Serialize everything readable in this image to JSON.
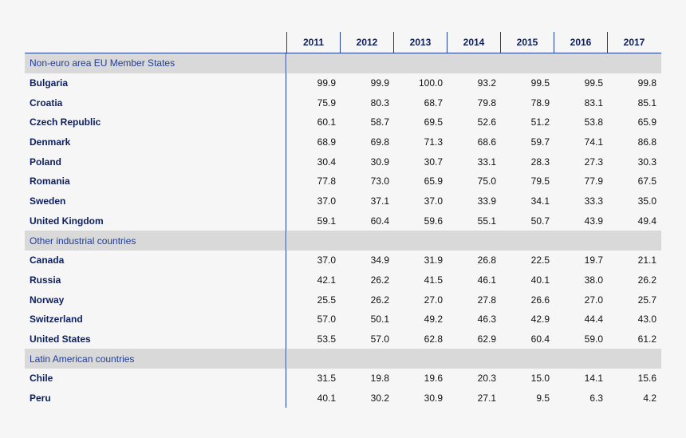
{
  "chart_data": {
    "type": "table",
    "columns": [
      "2011",
      "2012",
      "2013",
      "2014",
      "2015",
      "2016",
      "2017"
    ],
    "groups": [
      {
        "name": "Non-euro area EU Member States",
        "rows": [
          {
            "label": "Bulgaria",
            "values": [
              "99.9",
              "99.9",
              "100.0",
              "93.2",
              "99.5",
              "99.5",
              "99.8"
            ]
          },
          {
            "label": "Croatia",
            "values": [
              "75.9",
              "80.3",
              "68.7",
              "79.8",
              "78.9",
              "83.1",
              "85.1"
            ]
          },
          {
            "label": "Czech Republic",
            "values": [
              "60.1",
              "58.7",
              "69.5",
              "52.6",
              "51.2",
              "53.8",
              "65.9"
            ]
          },
          {
            "label": "Denmark",
            "values": [
              "68.9",
              "69.8",
              "71.3",
              "68.6",
              "59.7",
              "74.1",
              "86.8"
            ]
          },
          {
            "label": "Poland",
            "values": [
              "30.4",
              "30.9",
              "30.7",
              "33.1",
              "28.3",
              "27.3",
              "30.3"
            ]
          },
          {
            "label": "Romania",
            "values": [
              "77.8",
              "73.0",
              "65.9",
              "75.0",
              "79.5",
              "77.9",
              "67.5"
            ]
          },
          {
            "label": "Sweden",
            "values": [
              "37.0",
              "37.1",
              "37.0",
              "33.9",
              "34.1",
              "33.3",
              "35.0"
            ]
          },
          {
            "label": "United Kingdom",
            "values": [
              "59.1",
              "60.4",
              "59.6",
              "55.1",
              "50.7",
              "43.9",
              "49.4"
            ]
          }
        ]
      },
      {
        "name": "Other industrial countries",
        "rows": [
          {
            "label": "Canada",
            "values": [
              "37.0",
              "34.9",
              "31.9",
              "26.8",
              "22.5",
              "19.7",
              "21.1"
            ]
          },
          {
            "label": "Russia",
            "values": [
              "42.1",
              "26.2",
              "41.5",
              "46.1",
              "40.1",
              "38.0",
              "26.2"
            ]
          },
          {
            "label": "Norway",
            "values": [
              "25.5",
              "26.2",
              "27.0",
              "27.8",
              "26.6",
              "27.0",
              "25.7"
            ]
          },
          {
            "label": "Switzerland",
            "values": [
              "57.0",
              "50.1",
              "49.2",
              "46.3",
              "42.9",
              "44.4",
              "43.0"
            ]
          },
          {
            "label": "United States",
            "values": [
              "53.5",
              "57.0",
              "62.8",
              "62.9",
              "60.4",
              "59.0",
              "61.2"
            ]
          }
        ]
      },
      {
        "name": "Latin American countries",
        "rows": [
          {
            "label": "Chile",
            "values": [
              "31.5",
              "19.8",
              "19.6",
              "20.3",
              "15.0",
              "14.1",
              "15.6"
            ]
          },
          {
            "label": "Peru",
            "values": [
              "40.1",
              "30.2",
              "30.9",
              "27.1",
              "9.5",
              "6.3",
              "4.2"
            ]
          }
        ]
      }
    ]
  },
  "colors": {
    "header_text": "#0d1f5c",
    "section_text": "#1f3d99",
    "rule": "#1f3d99",
    "section_fill": "#d9d9d9",
    "background": "#f6f6f6"
  }
}
